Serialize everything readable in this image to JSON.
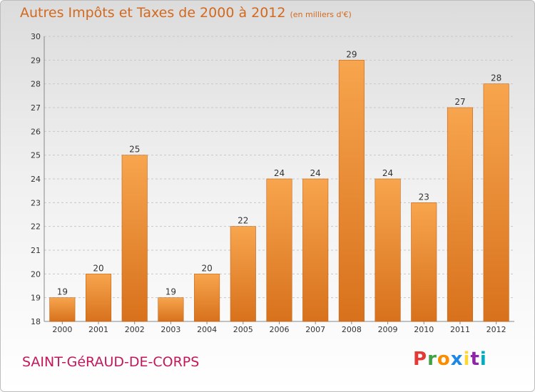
{
  "header": {
    "title": "Autres Impôts et Taxes de 2000 à 2012",
    "unit": "(en milliers d'€)"
  },
  "footer": {
    "place": "SAINT-GéRAUD-DE-CORPS",
    "logo_letters": [
      "P",
      "r",
      "o",
      "x",
      "i",
      "t",
      "i"
    ],
    "logo_colors": [
      "#e53935",
      "#43a047",
      "#fb8c00",
      "#1e88e5",
      "#fdd835",
      "#8e24aa",
      "#00acc1"
    ]
  },
  "colors": {
    "bar_top": "#f7a54e",
    "bar_bottom": "#d8711c",
    "bar_edge": "#c2651a",
    "title": "#d2691e",
    "place": "#c2185b"
  },
  "chart_data": {
    "type": "bar",
    "title": "Autres Impôts et Taxes de 2000 à 2012",
    "xlabel": "",
    "ylabel": "",
    "categories": [
      "2000",
      "2001",
      "2002",
      "2003",
      "2004",
      "2005",
      "2006",
      "2007",
      "2008",
      "2009",
      "2010",
      "2011",
      "2012"
    ],
    "values": [
      19,
      20,
      25,
      19,
      20,
      22,
      24,
      24,
      29,
      24,
      23,
      27,
      28
    ],
    "ylim": [
      18,
      30
    ],
    "yticks": [
      18,
      19,
      20,
      21,
      22,
      23,
      24,
      25,
      26,
      27,
      28,
      29,
      30
    ],
    "grid": "horizontal dashed",
    "legend": "none"
  }
}
